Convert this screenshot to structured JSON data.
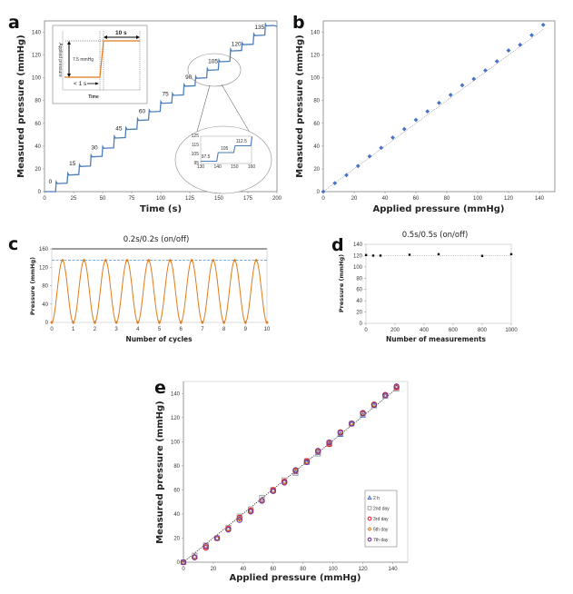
{
  "figure": {
    "panels": [
      "a",
      "b",
      "c",
      "d",
      "e"
    ]
  },
  "chart_data": [
    {
      "id": "a",
      "panel_label": "a",
      "type": "line",
      "title": "",
      "xlabel": "Time (s)",
      "ylabel": "Measured pressure (mmHg)",
      "xlim": [
        0,
        200
      ],
      "ylim": [
        0,
        150
      ],
      "xticks": [
        0,
        25,
        50,
        75,
        100,
        125,
        150,
        175,
        200
      ],
      "yticks": [
        0,
        20,
        40,
        60,
        80,
        100,
        120,
        140
      ],
      "grid": false,
      "series_color": "#4a7ebb",
      "steps": {
        "start_times": [
          0,
          9.5,
          19.5,
          29.5,
          39.5,
          49.5,
          59.5,
          69.5,
          79.5,
          89.5,
          99.5,
          109.5,
          119.5,
          129.5,
          139.5,
          149.5,
          159.5,
          169.5,
          179.5,
          189.5
        ],
        "levels": [
          0,
          7.5,
          15,
          22.5,
          31,
          38.5,
          47.5,
          55,
          63,
          70.5,
          78,
          85,
          93,
          100,
          107,
          114.5,
          124,
          129.5,
          137.5,
          146
        ]
      },
      "annotations": [
        {
          "text": "0",
          "x": 5,
          "y": 7
        },
        {
          "text": "15",
          "x": 24,
          "y": 23
        },
        {
          "text": "30",
          "x": 43,
          "y": 37
        },
        {
          "text": "45",
          "x": 64,
          "y": 54
        },
        {
          "text": "60",
          "x": 84,
          "y": 69
        },
        {
          "text": "75",
          "x": 104,
          "y": 84
        },
        {
          "text": "90",
          "x": 124,
          "y": 99
        },
        {
          "text": "105",
          "x": 145,
          "y": 113
        },
        {
          "text": "120",
          "x": 165,
          "y": 128
        },
        {
          "text": "135",
          "x": 185,
          "y": 143
        }
      ],
      "inset_step": {
        "ylabel": "Applied pressure",
        "xlabel": "Time",
        "step_label": "7.5 mmHg",
        "rise_label": "< 1 s",
        "hold_label": "10 s",
        "line_color": "#e07b1a"
      },
      "inset_zoom": {
        "xlim": [
          130,
          160
        ],
        "ylim": [
          95,
          125
        ],
        "xticks": [
          130,
          140,
          150,
          160
        ],
        "yticks": [
          95,
          105,
          115,
          125
        ],
        "labels": [
          "97.5",
          "105",
          "112.5"
        ],
        "steps": {
          "start_times": [
            130,
            139.5,
            149.5,
            159.5
          ],
          "levels": [
            97.5,
            107,
            114.5,
            124
          ]
        }
      }
    },
    {
      "id": "b",
      "panel_label": "b",
      "type": "scatter",
      "title": "",
      "xlabel": "Applied pressure (mmHg)",
      "ylabel": "Measured pressure (mmHg)",
      "xlim": [
        0,
        150
      ],
      "ylim": [
        0,
        150
      ],
      "xticks": [
        0,
        20,
        40,
        60,
        80,
        100,
        120,
        140
      ],
      "yticks": [
        0,
        20,
        40,
        60,
        80,
        100,
        120,
        140
      ],
      "grid": false,
      "marker_color": "#4472c4",
      "x": [
        0,
        7.5,
        15,
        22.5,
        30,
        37.5,
        45,
        52.5,
        60,
        67.5,
        75,
        82.5,
        90,
        97.5,
        105,
        112.5,
        120,
        127.5,
        135,
        142.5
      ],
      "y": [
        0,
        7.5,
        14.5,
        22.5,
        31,
        38.5,
        47.5,
        55,
        63,
        70.5,
        78,
        85,
        93.5,
        99,
        106.5,
        114.5,
        124,
        129,
        137.5,
        146.5
      ],
      "trendline": {
        "style": "dotted",
        "from": [
          0,
          0
        ],
        "to": [
          142.5,
          142.5
        ]
      }
    },
    {
      "id": "c",
      "panel_label": "c",
      "type": "line",
      "title": "0.2s/0.2s (on/off)",
      "xlabel": "Number of cycles",
      "ylabel": "Pressure (mmHg)",
      "xlim": [
        0,
        10
      ],
      "ylim": [
        0,
        160
      ],
      "xticks": [
        0,
        1,
        2,
        3,
        4,
        5,
        6,
        7,
        8,
        9,
        10
      ],
      "yticks": [
        0,
        40,
        80,
        120,
        160
      ],
      "grid": false,
      "series_color": "#e07b1a",
      "reference_line": {
        "y": 135,
        "style": "dashed",
        "color": "#4a90d9"
      },
      "x": [
        0,
        0.5,
        1,
        1.5,
        2,
        2.5,
        3,
        3.5,
        4,
        4.5,
        5,
        5.5,
        6,
        6.5,
        7,
        7.5,
        8,
        8.5,
        9,
        9.5,
        10
      ],
      "y": [
        0,
        135,
        0,
        135,
        0,
        135,
        0,
        135,
        0,
        135,
        0,
        135,
        0,
        135,
        0,
        135,
        0,
        135,
        0,
        135,
        0
      ]
    },
    {
      "id": "d",
      "panel_label": "d",
      "type": "scatter",
      "title": "0.5s/0.5s (on/off)",
      "xlabel": "Number of measurements",
      "ylabel": "Pressure (mmHg)",
      "xlim": [
        0,
        1000
      ],
      "ylim": [
        0,
        140
      ],
      "xticks": [
        0,
        200,
        400,
        600,
        800,
        1000
      ],
      "yticks": [
        0,
        20,
        40,
        60,
        80,
        100,
        120,
        140
      ],
      "grid": false,
      "marker_color": "#111111",
      "reference_line": {
        "y": 120,
        "style": "dotted",
        "color": "#d9a0a0"
      },
      "x": [
        1,
        50,
        100,
        300,
        500,
        800,
        1000
      ],
      "y": [
        121,
        120,
        120,
        121.5,
        122.5,
        119.5,
        122.5
      ]
    },
    {
      "id": "e",
      "panel_label": "e",
      "type": "scatter",
      "title": "",
      "xlabel": "Applied pressure (mmHg)",
      "ylabel": "Measured pressure (mmHg)",
      "xlim": [
        0,
        150
      ],
      "ylim": [
        0,
        150
      ],
      "xticks": [
        0,
        20,
        40,
        60,
        80,
        100,
        120,
        140
      ],
      "yticks": [
        0,
        20,
        40,
        60,
        80,
        100,
        120,
        140
      ],
      "grid": false,
      "legend_position": "bottom-right",
      "trendline": {
        "style": "dotted",
        "from": [
          0,
          0
        ],
        "to": [
          142.5,
          144
        ]
      },
      "x": [
        0,
        7.5,
        15,
        22.5,
        30,
        37.5,
        45,
        52.5,
        60,
        67.5,
        75,
        82.5,
        90,
        97.5,
        105,
        112.5,
        120,
        127.5,
        135,
        142.5
      ],
      "series": [
        {
          "name": "2 h",
          "marker": "triangle",
          "color": "#4472c4",
          "y": [
            0,
            5,
            13,
            20,
            28,
            37,
            43,
            52,
            59.5,
            67,
            75,
            83,
            91,
            98,
            106,
            115,
            122,
            130,
            138,
            145
          ]
        },
        {
          "name": "2nd day",
          "marker": "square",
          "color": "#a6a6a6",
          "y": [
            0,
            5.5,
            14,
            20,
            28.5,
            38,
            44,
            53.5,
            60,
            68,
            74,
            84,
            90,
            99,
            107,
            115,
            123,
            130,
            138,
            144
          ]
        },
        {
          "name": "3rd day",
          "marker": "circle",
          "color": "#e8202a",
          "y": [
            0,
            4,
            12,
            20,
            28,
            37,
            43,
            51,
            60,
            67,
            76,
            84,
            92,
            98,
            108,
            115,
            124,
            131,
            139,
            145
          ]
        },
        {
          "name": "5th day",
          "marker": "diamond",
          "color": "#e07b1a",
          "y": [
            0,
            4.5,
            13,
            20,
            27.5,
            36,
            42.5,
            51.5,
            59.5,
            66.5,
            76,
            83.5,
            92,
            99,
            108,
            115.5,
            123.5,
            131,
            138.5,
            146
          ]
        },
        {
          "name": "7th day",
          "marker": "circle",
          "color": "#7030a0",
          "y": [
            0,
            4,
            13.5,
            20,
            27,
            35,
            42,
            51,
            59,
            66,
            76.5,
            83,
            92.5,
            99.5,
            107.5,
            115,
            123.5,
            130.5,
            138.5,
            146
          ]
        }
      ]
    }
  ]
}
